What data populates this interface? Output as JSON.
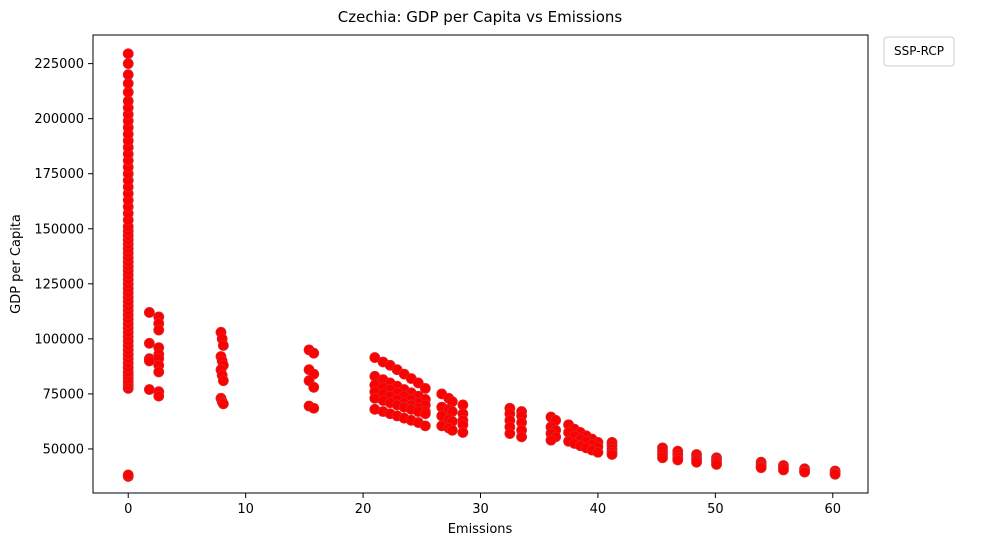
{
  "chart_data": {
    "type": "scatter",
    "title": "Czechia: GDP per Capita vs Emissions",
    "xlabel": "Emissions",
    "ylabel": "GDP per Capita",
    "xlim": [
      -3,
      63
    ],
    "ylim": [
      30000,
      238000
    ],
    "xticks": [
      0,
      10,
      20,
      30,
      40,
      50,
      60
    ],
    "yticks": [
      50000,
      75000,
      100000,
      125000,
      150000,
      175000,
      200000,
      225000
    ],
    "legend": {
      "title": "SSP-RCP",
      "placement": "outside-top-right"
    },
    "grid": false,
    "marker_color": "#ff0000",
    "marker_edge_color": "#d62728",
    "series": [
      {
        "points": [
          [
            0,
            37500
          ],
          [
            0,
            38200
          ],
          [
            0,
            77500
          ],
          [
            0,
            79000
          ],
          [
            0,
            80500
          ],
          [
            0,
            82000
          ],
          [
            0,
            83500
          ],
          [
            0,
            85000
          ],
          [
            0,
            87000
          ],
          [
            0,
            89000
          ],
          [
            0,
            91000
          ],
          [
            0,
            93000
          ],
          [
            0,
            95000
          ],
          [
            0,
            97000
          ],
          [
            0,
            99000
          ],
          [
            0,
            101000
          ],
          [
            0,
            103000
          ],
          [
            0,
            105000
          ],
          [
            0,
            107000
          ],
          [
            0,
            109000
          ],
          [
            0,
            111000
          ],
          [
            0,
            113000
          ],
          [
            0,
            115000
          ],
          [
            0,
            117000
          ],
          [
            0,
            119000
          ],
          [
            0,
            121000
          ],
          [
            0,
            123000
          ],
          [
            0,
            125000
          ],
          [
            0,
            127000
          ],
          [
            0,
            129000
          ],
          [
            0,
            131000
          ],
          [
            0,
            133000
          ],
          [
            0,
            135000
          ],
          [
            0,
            137000
          ],
          [
            0,
            139000
          ],
          [
            0,
            141000
          ],
          [
            0,
            143000
          ],
          [
            0,
            145000
          ],
          [
            0,
            147000
          ],
          [
            0,
            149000
          ],
          [
            0,
            151000
          ],
          [
            0,
            154000
          ],
          [
            0,
            157000
          ],
          [
            0,
            160000
          ],
          [
            0,
            163000
          ],
          [
            0,
            166000
          ],
          [
            0,
            169000
          ],
          [
            0,
            172000
          ],
          [
            0,
            175000
          ],
          [
            0,
            178000
          ],
          [
            0,
            181000
          ],
          [
            0,
            184000
          ],
          [
            0,
            187000
          ],
          [
            0,
            190000
          ],
          [
            0,
            193000
          ],
          [
            0,
            196000
          ],
          [
            0,
            199000
          ],
          [
            0,
            202000
          ],
          [
            0,
            205000
          ],
          [
            0,
            208000
          ],
          [
            0,
            212000
          ],
          [
            0,
            216000
          ],
          [
            0,
            220000
          ],
          [
            0,
            225000
          ],
          [
            0,
            229500
          ],
          [
            1.8,
            112000
          ],
          [
            1.8,
            98000
          ],
          [
            1.8,
            91000
          ],
          [
            1.8,
            90000
          ],
          [
            1.8,
            77000
          ],
          [
            2.6,
            110000
          ],
          [
            2.6,
            107000
          ],
          [
            2.6,
            104000
          ],
          [
            2.6,
            96000
          ],
          [
            2.6,
            93000
          ],
          [
            2.6,
            91000
          ],
          [
            2.6,
            88000
          ],
          [
            2.6,
            85000
          ],
          [
            2.6,
            76000
          ],
          [
            2.6,
            74000
          ],
          [
            7.9,
            103000
          ],
          [
            8.0,
            100000
          ],
          [
            8.1,
            97000
          ],
          [
            7.9,
            92000
          ],
          [
            8.0,
            90000
          ],
          [
            8.1,
            88000
          ],
          [
            7.9,
            86000
          ],
          [
            8.0,
            83500
          ],
          [
            8.1,
            81000
          ],
          [
            7.9,
            73000
          ],
          [
            8.0,
            71500
          ],
          [
            8.1,
            70500
          ],
          [
            15.4,
            95000
          ],
          [
            15.8,
            93500
          ],
          [
            15.4,
            86000
          ],
          [
            15.8,
            84000
          ],
          [
            15.4,
            81000
          ],
          [
            15.8,
            78000
          ],
          [
            15.4,
            69500
          ],
          [
            15.8,
            68500
          ],
          [
            21,
            91500
          ],
          [
            21.7,
            89500
          ],
          [
            22.3,
            88000
          ],
          [
            22.9,
            86000
          ],
          [
            23.5,
            84000
          ],
          [
            24.1,
            82000
          ],
          [
            24.7,
            80000
          ],
          [
            25.3,
            77500
          ],
          [
            21,
            83000
          ],
          [
            21.7,
            81500
          ],
          [
            22.3,
            80000
          ],
          [
            22.9,
            78500
          ],
          [
            23.5,
            77000
          ],
          [
            24.1,
            75500
          ],
          [
            24.7,
            74000
          ],
          [
            25.3,
            72500
          ],
          [
            21,
            79000
          ],
          [
            21.7,
            78000
          ],
          [
            22.3,
            77000
          ],
          [
            22.9,
            75500
          ],
          [
            23.5,
            74000
          ],
          [
            24.1,
            72500
          ],
          [
            24.7,
            71000
          ],
          [
            25.3,
            70000
          ],
          [
            21,
            76000
          ],
          [
            21.7,
            75000
          ],
          [
            22.3,
            74000
          ],
          [
            22.9,
            72500
          ],
          [
            23.5,
            71000
          ],
          [
            24.1,
            70000
          ],
          [
            24.7,
            68500
          ],
          [
            25.3,
            67000
          ],
          [
            21,
            73000
          ],
          [
            21.7,
            72000
          ],
          [
            22.3,
            71000
          ],
          [
            22.9,
            70000
          ],
          [
            23.5,
            69000
          ],
          [
            24.1,
            68000
          ],
          [
            24.7,
            67000
          ],
          [
            25.3,
            66000
          ],
          [
            21,
            68000
          ],
          [
            21.7,
            67000
          ],
          [
            22.3,
            66000
          ],
          [
            22.9,
            65000
          ],
          [
            23.5,
            64000
          ],
          [
            24.1,
            63000
          ],
          [
            24.7,
            62000
          ],
          [
            25.3,
            60500
          ],
          [
            26.7,
            75000
          ],
          [
            27.3,
            73000
          ],
          [
            27.6,
            71500
          ],
          [
            26.7,
            69000
          ],
          [
            27.3,
            68000
          ],
          [
            27.6,
            67000
          ],
          [
            26.7,
            65000
          ],
          [
            27.3,
            63500
          ],
          [
            27.6,
            62500
          ],
          [
            26.7,
            60500
          ],
          [
            27.3,
            59500
          ],
          [
            27.6,
            58500
          ],
          [
            28.5,
            70000
          ],
          [
            28.5,
            66000
          ],
          [
            28.5,
            63000
          ],
          [
            28.5,
            61000
          ],
          [
            28.5,
            57500
          ],
          [
            32.5,
            68500
          ],
          [
            32.5,
            66000
          ],
          [
            32.5,
            63000
          ],
          [
            32.5,
            60000
          ],
          [
            32.5,
            57000
          ],
          [
            33.5,
            67000
          ],
          [
            33.5,
            65000
          ],
          [
            33.5,
            62000
          ],
          [
            33.5,
            58500
          ],
          [
            33.5,
            55500
          ],
          [
            36,
            64500
          ],
          [
            36.4,
            63000
          ],
          [
            36,
            60000
          ],
          [
            36.4,
            58500
          ],
          [
            36,
            57000
          ],
          [
            36.4,
            55500
          ],
          [
            36,
            54000
          ],
          [
            37.5,
            61000
          ],
          [
            38.0,
            59000
          ],
          [
            38.5,
            57500
          ],
          [
            39.0,
            56000
          ],
          [
            39.5,
            54500
          ],
          [
            40.0,
            53000
          ],
          [
            37.5,
            57500
          ],
          [
            38.0,
            56000
          ],
          [
            38.5,
            54500
          ],
          [
            39.0,
            53500
          ],
          [
            39.5,
            52000
          ],
          [
            40.0,
            51000
          ],
          [
            37.5,
            53500
          ],
          [
            38.0,
            52500
          ],
          [
            38.5,
            51500
          ],
          [
            39.0,
            50500
          ],
          [
            39.5,
            49500
          ],
          [
            40.0,
            48500
          ],
          [
            41.2,
            53000
          ],
          [
            41.2,
            51500
          ],
          [
            41.2,
            50000
          ],
          [
            41.2,
            48500
          ],
          [
            41.2,
            47500
          ],
          [
            45.5,
            50500
          ],
          [
            45.5,
            49000
          ],
          [
            45.5,
            47500
          ],
          [
            45.5,
            46000
          ],
          [
            46.8,
            49000
          ],
          [
            46.8,
            47500
          ],
          [
            46.8,
            46000
          ],
          [
            46.8,
            45000
          ],
          [
            48.4,
            47500
          ],
          [
            48.4,
            46000
          ],
          [
            48.4,
            45000
          ],
          [
            48.4,
            44000
          ],
          [
            50.1,
            46000
          ],
          [
            50.1,
            45000
          ],
          [
            50.1,
            44000
          ],
          [
            50.1,
            43000
          ],
          [
            53.9,
            44000
          ],
          [
            53.9,
            43000
          ],
          [
            53.9,
            42000
          ],
          [
            53.9,
            41500
          ],
          [
            55.8,
            42500
          ],
          [
            55.8,
            41500
          ],
          [
            55.8,
            40500
          ],
          [
            57.6,
            41000
          ],
          [
            57.6,
            40000
          ],
          [
            57.6,
            39500
          ],
          [
            60.2,
            40000
          ],
          [
            60.2,
            39000
          ],
          [
            60.2,
            38500
          ]
        ]
      }
    ]
  }
}
